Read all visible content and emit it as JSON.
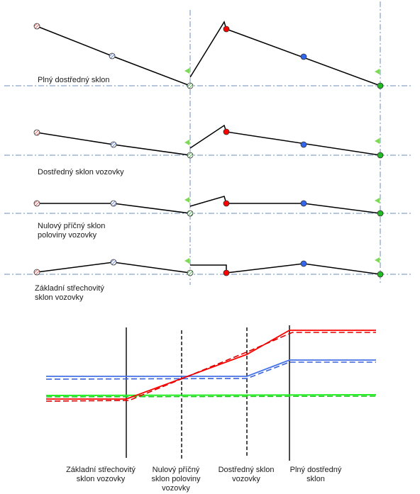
{
  "profiles": [
    {
      "label_lines": [
        "Plný dostředný sklon"
      ]
    },
    {
      "label_lines": [
        "Dostředný sklon vozovky"
      ]
    },
    {
      "label_lines": [
        "Nulový příčný sklon",
        "poloviny vozovky"
      ]
    },
    {
      "label_lines": [
        "Základní střechovitý",
        "sklon vozovky"
      ]
    }
  ],
  "stations": [
    {
      "label_lines": [
        "Základní střechovitý",
        "sklon vozovky"
      ]
    },
    {
      "label_lines": [
        "Nulový příčný",
        "sklon poloviny",
        "vozovky"
      ]
    },
    {
      "label_lines": [
        "Dostředný sklon",
        "vozovky"
      ]
    },
    {
      "label_lines": [
        "Plný dostředný",
        "sklon"
      ]
    }
  ],
  "colors": {
    "red": "#ff0000",
    "blue": "#4472e8",
    "green": "#22dd22",
    "axis": "#6c8ebf",
    "flag": "#7ed957",
    "hatch_red": "#ff6666",
    "hatch_blue": "#7799ee",
    "hatch_green": "#55cc55"
  }
}
